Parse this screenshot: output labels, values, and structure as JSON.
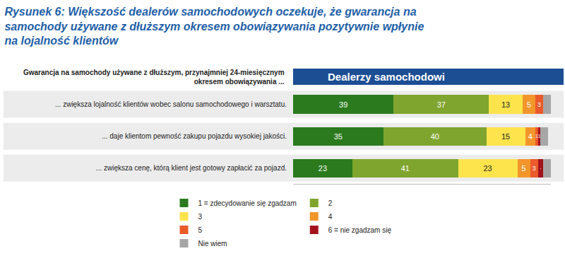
{
  "chart_data": {
    "type": "bar",
    "orientation": "horizontal",
    "stacked": true,
    "data_labels": true,
    "tick_labels": "y",
    "grid": false,
    "legend": "bottom",
    "title": "Rysunek 6: Większość dealerów samochodowych oczekuje, że gwarancja na\nsamochody używane z dłuższym okresem obowiązywania pozytywnie wpłynie\nna lojalność klientów",
    "subtitle": "Dealerzy samochodowi",
    "annotations": [
      "Gwarancja na samochody używane z dłuższym, przynajmniej 24-miesięcznym\nokresem obowiązywania ..."
    ],
    "categories": [
      "... zwiększa lojalność klientów wobec salonu samochodowego i warsztatu.",
      "... daje klientom pewność zakupu pojazdu wysokiej jakości.",
      "... zwiększa cenę, którą klient jest gotowy zapłacić za pojazd."
    ],
    "xlim": [
      0,
      100
    ],
    "series": [
      {
        "name": "1 = zdecydowanie się zgadzam",
        "color": "#2b7a1e",
        "values": [
          39,
          35,
          23
        ],
        "value_labels": [
          "39",
          "35",
          "23"
        ]
      },
      {
        "name": "2",
        "color": "#7fa52e",
        "values": [
          37,
          40,
          41
        ],
        "value_labels": [
          "37",
          "40",
          "41"
        ]
      },
      {
        "name": "3",
        "color": "#fde44d",
        "values": [
          13,
          15,
          23
        ],
        "value_labels": [
          "13",
          "15",
          "23"
        ]
      },
      {
        "name": "4",
        "color": "#f2962b",
        "values": [
          5,
          4,
          5
        ],
        "value_labels": [
          "5",
          "4",
          "5"
        ]
      },
      {
        "name": "5",
        "color": "#ea5a2b",
        "values": [
          3,
          1,
          3
        ],
        "value_labels": [
          "3",
          "1",
          "3"
        ]
      },
      {
        "name": "6 = nie zgadzam się",
        "color": "#a3121c",
        "values": [
          null,
          1,
          2
        ],
        "value_labels": [
          null,
          "1",
          "2"
        ]
      },
      {
        "name": "Nie wiem",
        "color": "#a6a6a6",
        "values": [
          3,
          3,
          3
        ],
        "value_labels": [
          null,
          null,
          null
        ]
      }
    ]
  }
}
